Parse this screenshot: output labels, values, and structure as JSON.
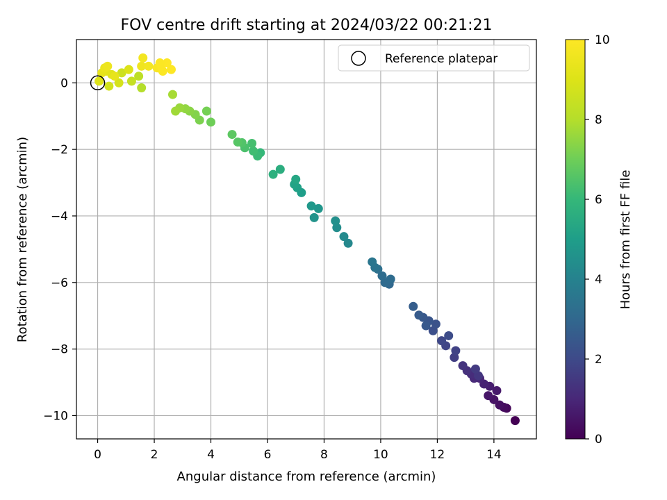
{
  "chart_data": {
    "type": "scatter",
    "title": "FOV centre drift starting at 2024/03/22 00:21:21",
    "xlabel": "Angular distance from reference (arcmin)",
    "ylabel": "Rotation from reference (arcmin)",
    "xlim": [
      -0.75,
      15.5
    ],
    "ylim": [
      -10.7,
      1.3
    ],
    "x_ticks": [
      0,
      2,
      4,
      6,
      8,
      10,
      12,
      14
    ],
    "y_ticks": [
      0,
      -2,
      -4,
      -6,
      -8,
      -10
    ],
    "y_tick_labels": [
      "0",
      "−2",
      "−4",
      "−6",
      "−8",
      "−10"
    ],
    "grid": true,
    "legend": {
      "placement": "top-right",
      "entries": [
        "Reference platepar"
      ]
    },
    "reference_point": {
      "x": 0,
      "y": 0,
      "marker": "open-circle",
      "label": "Reference platepar"
    },
    "colorbar": {
      "label": "Hours from first FF file",
      "colormap": "viridis",
      "range": [
        0,
        10
      ],
      "ticks": [
        0,
        2,
        4,
        6,
        8,
        10
      ]
    },
    "points_columns": [
      "x",
      "y",
      "hours"
    ],
    "points": [
      [
        14.75,
        -10.15,
        0.0
      ],
      [
        14.45,
        -9.78,
        0.15
      ],
      [
        14.35,
        -9.75,
        0.25
      ],
      [
        14.2,
        -9.68,
        0.35
      ],
      [
        14.0,
        -9.52,
        0.45
      ],
      [
        13.8,
        -9.4,
        0.55
      ],
      [
        14.1,
        -9.25,
        0.65
      ],
      [
        13.85,
        -9.12,
        0.75
      ],
      [
        13.65,
        -9.05,
        0.85
      ],
      [
        13.5,
        -8.88,
        0.95
      ],
      [
        13.3,
        -8.88,
        1.05
      ],
      [
        13.2,
        -8.75,
        1.15
      ],
      [
        13.05,
        -8.65,
        1.25
      ],
      [
        12.9,
        -8.5,
        1.35
      ],
      [
        13.45,
        -8.8,
        1.45
      ],
      [
        13.35,
        -8.6,
        1.55
      ],
      [
        12.6,
        -8.25,
        1.65
      ],
      [
        12.65,
        -8.05,
        1.75
      ],
      [
        12.3,
        -7.9,
        1.85
      ],
      [
        12.15,
        -7.75,
        1.95
      ],
      [
        12.4,
        -7.6,
        2.05
      ],
      [
        11.85,
        -7.45,
        2.15
      ],
      [
        11.95,
        -7.25,
        2.25
      ],
      [
        11.7,
        -7.15,
        2.35
      ],
      [
        11.5,
        -7.05,
        2.45
      ],
      [
        11.35,
        -6.98,
        2.55
      ],
      [
        11.15,
        -6.72,
        2.65
      ],
      [
        11.6,
        -7.3,
        2.5
      ],
      [
        10.3,
        -6.05,
        3.0
      ],
      [
        10.15,
        -6.0,
        3.1
      ],
      [
        10.05,
        -5.8,
        3.2
      ],
      [
        9.9,
        -5.6,
        3.3
      ],
      [
        9.8,
        -5.55,
        3.45
      ],
      [
        9.7,
        -5.38,
        3.55
      ],
      [
        10.35,
        -5.9,
        3.15
      ],
      [
        8.85,
        -4.82,
        4.2
      ],
      [
        8.7,
        -4.62,
        4.3
      ],
      [
        8.45,
        -4.35,
        4.4
      ],
      [
        8.4,
        -4.15,
        4.5
      ],
      [
        7.8,
        -3.78,
        4.7
      ],
      [
        7.55,
        -3.7,
        4.8
      ],
      [
        7.2,
        -3.3,
        5.0
      ],
      [
        7.05,
        -3.15,
        5.1
      ],
      [
        6.95,
        -3.05,
        5.2
      ],
      [
        7.0,
        -2.9,
        5.3
      ],
      [
        7.65,
        -4.05,
        4.6
      ],
      [
        6.45,
        -2.6,
        5.6
      ],
      [
        6.2,
        -2.75,
        5.7
      ],
      [
        5.75,
        -2.1,
        6.0
      ],
      [
        5.65,
        -2.2,
        6.1
      ],
      [
        5.5,
        -2.05,
        6.2
      ],
      [
        5.45,
        -1.82,
        6.3
      ],
      [
        5.2,
        -1.95,
        6.4
      ],
      [
        5.1,
        -1.8,
        6.5
      ],
      [
        4.95,
        -1.78,
        6.6
      ],
      [
        4.75,
        -1.55,
        6.7
      ],
      [
        4.0,
        -1.18,
        7.0
      ],
      [
        3.85,
        -0.85,
        7.1
      ],
      [
        3.6,
        -1.12,
        7.2
      ],
      [
        3.45,
        -0.95,
        7.3
      ],
      [
        3.25,
        -0.85,
        7.4
      ],
      [
        3.1,
        -0.78,
        7.5
      ],
      [
        2.9,
        -0.75,
        7.6
      ],
      [
        2.75,
        -0.85,
        7.7
      ],
      [
        2.65,
        -0.35,
        7.8
      ],
      [
        1.55,
        -0.15,
        8.0
      ],
      [
        1.45,
        0.2,
        8.2
      ],
      [
        1.2,
        0.05,
        8.4
      ],
      [
        0.85,
        0.3,
        8.6
      ],
      [
        0.75,
        0.0,
        8.8
      ],
      [
        1.1,
        0.4,
        9.0
      ],
      [
        0.4,
        -0.1,
        8.7
      ],
      [
        0.5,
        0.25,
        9.1
      ],
      [
        0.3,
        0.35,
        9.2
      ],
      [
        0.15,
        0.3,
        9.3
      ],
      [
        0.05,
        0.05,
        9.0
      ],
      [
        0.25,
        0.45,
        9.4
      ],
      [
        0.35,
        0.5,
        9.5
      ],
      [
        0.6,
        0.2,
        9.3
      ],
      [
        1.55,
        0.5,
        9.6
      ],
      [
        1.6,
        0.75,
        9.7
      ],
      [
        1.8,
        0.5,
        9.7
      ],
      [
        2.1,
        0.45,
        9.85
      ],
      [
        2.25,
        0.5,
        9.9
      ],
      [
        2.3,
        0.35,
        9.95
      ],
      [
        2.45,
        0.6,
        10.0
      ],
      [
        2.2,
        0.6,
        9.95
      ],
      [
        2.6,
        0.4,
        10.0
      ]
    ]
  }
}
